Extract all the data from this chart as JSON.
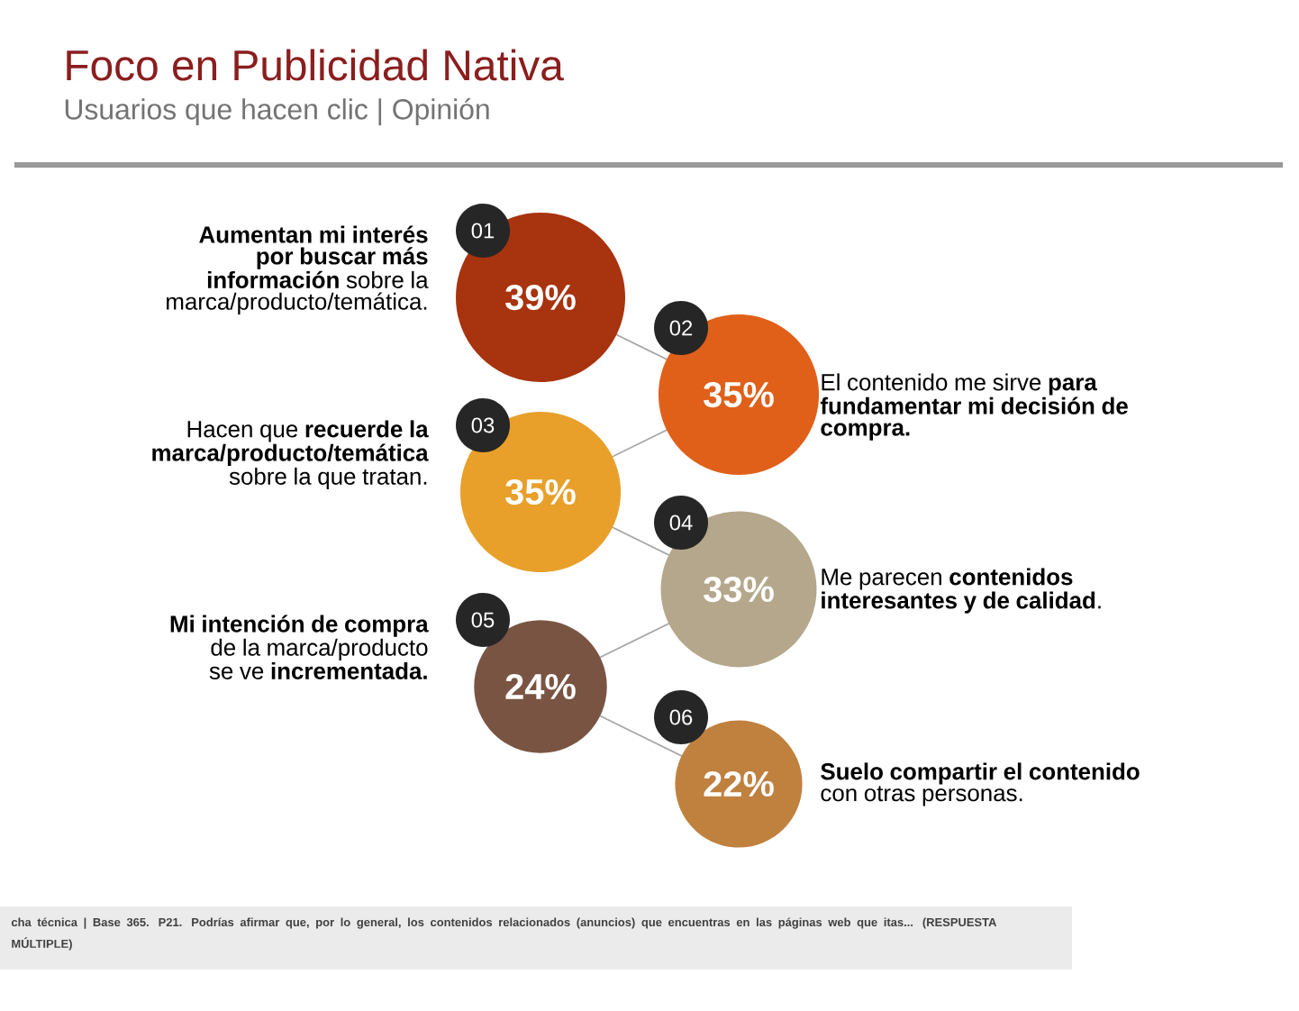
{
  "chart_data": {
    "type": "other",
    "title": "Foco en Publicidad Nativa",
    "subtitle": "Usuarios que hacen clic | Opinión",
    "categories": [
      "**Aumentan mi interés por buscar más información** sobre la marca/producto/temática.",
      "El contenido me sirve **para fundamentar mi decisión de compra.**",
      "Hacen que **recuerde la marca/producto/temática** sobre la que tratan.",
      "Me parecen **contenidos interesantes y de calidad**.",
      "**Mi intención de compra** de la marca/producto se ve **incrementada.**",
      "**Suelo compartir el contenido** con otras personas."
    ],
    "values": [
      39,
      35,
      35,
      33,
      24,
      22
    ],
    "value_labels": [
      "39%",
      "35%",
      "35%",
      "33%",
      "24%",
      "22%"
    ],
    "colors": [
      "#a8330f",
      "#e0601a",
      "#e8a02a",
      "#b5a78c",
      "#7a5443",
      "#c0813f"
    ],
    "annotations": [
      "01",
      "02",
      "03",
      "04",
      "05",
      "06",
      "cha técnica | Base 365. P21. Podrías afirmar que, por lo general, los contenidos relacionados (anuncios) que encuentras en las páginas web que itas... (RESPUESTA MÚLTIPLE)"
    ]
  }
}
